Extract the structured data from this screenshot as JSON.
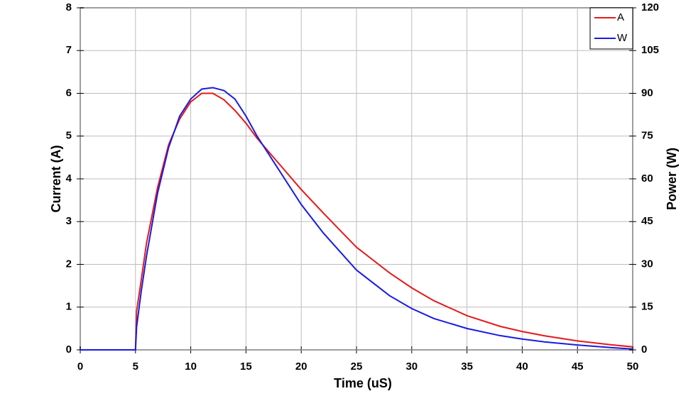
{
  "chart_data": {
    "type": "line",
    "xlabel": "Time (uS)",
    "ylabel": "Current (A)",
    "y2label": "Power (W)",
    "x": [
      0,
      5,
      5.1,
      5.5,
      6,
      7,
      8,
      9,
      10,
      11,
      12,
      13,
      14,
      15,
      16,
      18,
      20,
      22,
      25,
      28,
      30,
      32,
      35,
      38,
      40,
      42,
      45,
      48,
      50
    ],
    "series": [
      {
        "name": "A",
        "color": "#e41a1a",
        "axis": "y",
        "values": [
          0,
          0,
          0.9,
          1.6,
          2.5,
          3.8,
          4.8,
          5.4,
          5.8,
          6.0,
          6.0,
          5.85,
          5.6,
          5.3,
          4.95,
          4.35,
          3.75,
          3.2,
          2.4,
          1.8,
          1.45,
          1.15,
          0.8,
          0.55,
          0.43,
          0.33,
          0.21,
          0.12,
          0.07
        ]
      },
      {
        "name": "W",
        "color": "#1a1ae4",
        "axis": "y2",
        "values": [
          0,
          0,
          8,
          20,
          33,
          55,
          71,
          82,
          88,
          91.5,
          92,
          91,
          88,
          82,
          75,
          63,
          51,
          41,
          28,
          19,
          14.5,
          11,
          7.5,
          5,
          3.8,
          2.8,
          1.7,
          0.8,
          0.3
        ]
      }
    ],
    "xlim": [
      0,
      50
    ],
    "xticks": [
      0,
      5,
      10,
      15,
      20,
      25,
      30,
      35,
      40,
      45,
      50
    ],
    "ylim": [
      0,
      8
    ],
    "yticks": [
      0,
      1,
      2,
      3,
      4,
      5,
      6,
      7,
      8
    ],
    "y2lim": [
      0,
      120
    ],
    "y2ticks": [
      0,
      15,
      30,
      45,
      60,
      75,
      90,
      105,
      120
    ],
    "grid": true,
    "legend": "top-right"
  }
}
